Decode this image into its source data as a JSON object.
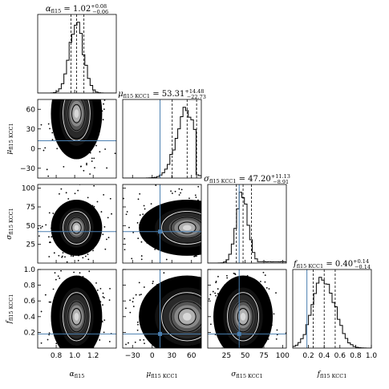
{
  "chart_data": {
    "type": "corner",
    "parameters": [
      {
        "symbol": "α",
        "sub": "fl15",
        "range": [
          0.6,
          1.45
        ],
        "ticks": [
          0.8,
          1.0,
          1.2
        ],
        "tick_labels": [
          "0.8",
          "1.0",
          "1.2"
        ],
        "median": 1.02,
        "lo": 0.96,
        "hi": 1.1,
        "truth": null,
        "title_value": "1.02",
        "title_plus": "+0.08",
        "title_minus": "−0.06",
        "hist_mean": 1.02,
        "hist_sd": 0.075
      },
      {
        "symbol": "μ",
        "sub": "fl15 KCC1",
        "range": [
          -45,
          75
        ],
        "ticks": [
          -30,
          0,
          30,
          60
        ],
        "tick_labels": [
          "−30",
          "0",
          "30",
          "60"
        ],
        "median": 53.31,
        "lo": 30.58,
        "hi": 67.79,
        "truth": 12,
        "title_value": "53.31",
        "title_plus": "+14.48",
        "title_minus": "−22.73",
        "hist_mean": 53,
        "hist_sd": 16
      },
      {
        "symbol": "σ",
        "sub": "fl15 KCC1",
        "range": [
          0,
          105
        ],
        "ticks": [
          25,
          50,
          75,
          100
        ],
        "tick_labels": [
          "25",
          "50",
          "75",
          "100"
        ],
        "median": 47.2,
        "lo": 38.29,
        "hi": 58.33,
        "truth": 42,
        "title_value": "47.20",
        "title_plus": "+11.13",
        "title_minus": "−8.91",
        "hist_mean": 46,
        "hist_sd": 8
      },
      {
        "symbol": "f",
        "sub": "fl15 KCC1",
        "range": [
          0,
          1.0
        ],
        "ticks": [
          0.2,
          0.4,
          0.6,
          0.8,
          1.0
        ],
        "tick_labels": [
          "0.2",
          "0.4",
          "0.6",
          "0.8",
          "1.0"
        ],
        "median": 0.4,
        "lo": 0.26,
        "hi": 0.54,
        "truth": 0.18,
        "title_value": "0.40",
        "title_plus": "+0.14",
        "title_minus": "−0.14",
        "hist_mean": 0.4,
        "hist_sd": 0.14
      }
    ],
    "truth_color": "#4a7fb0",
    "grid": false
  }
}
